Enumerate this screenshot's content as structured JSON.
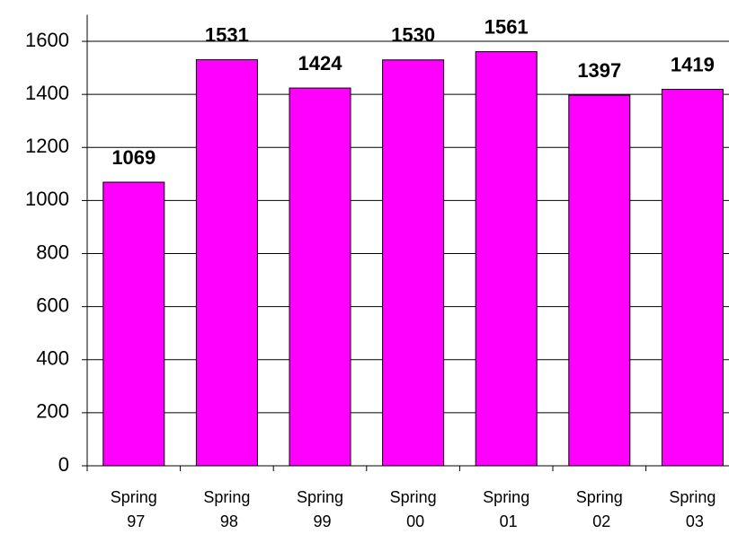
{
  "chart_data": {
    "type": "bar",
    "categories": [
      "Spring 97",
      "Spring 98",
      "Spring 99",
      "Spring 00",
      "Spring 01",
      "Spring 02",
      "Spring 03"
    ],
    "values": [
      1069,
      1531,
      1424,
      1530,
      1561,
      1397,
      1419
    ],
    "color": "#ff00ff",
    "ylim": [
      0,
      1700
    ],
    "yticks": [
      0,
      200,
      400,
      600,
      800,
      1000,
      1200,
      1400,
      1600
    ],
    "grid": true
  }
}
